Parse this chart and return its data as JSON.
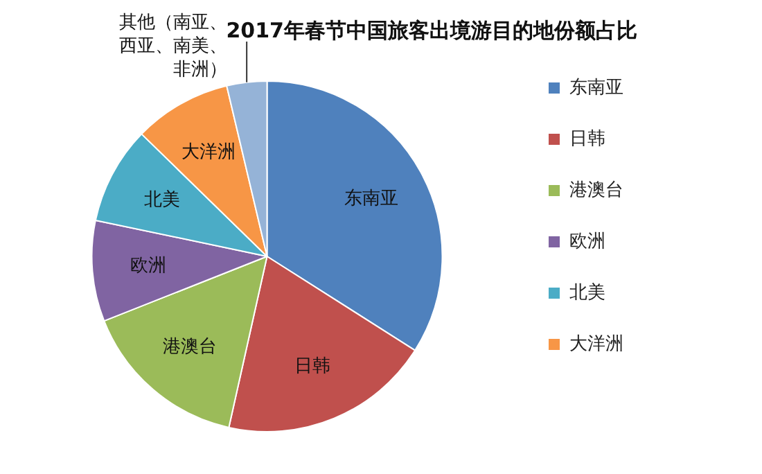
{
  "chart_data": {
    "type": "pie",
    "title": "2017年春节中国旅客出境游目的地份额占比",
    "categories": [
      "东南亚",
      "日韩",
      "港澳台",
      "欧洲",
      "北美",
      "大洋洲",
      "其他（南亚、西亚、南美、非洲）"
    ],
    "values": [
      34,
      19.5,
      15.5,
      9.3,
      9,
      9,
      3.7
    ],
    "colors": [
      "#4f81bd",
      "#c0504d",
      "#9bbb59",
      "#8064a2",
      "#4bacc6",
      "#f79646",
      "#95b3d7"
    ],
    "legend": "right"
  }
}
